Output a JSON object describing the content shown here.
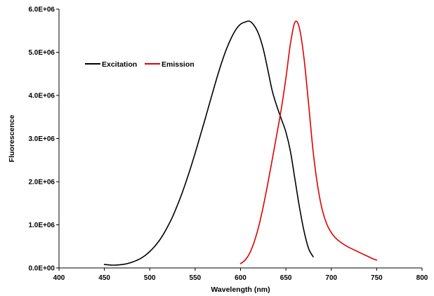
{
  "chart_data": {
    "type": "line",
    "title": "",
    "xlabel": "Wavelength (nm)",
    "ylabel": "Fluorescence",
    "xlim": [
      400,
      800
    ],
    "ylim": [
      0,
      6000000
    ],
    "x_ticks": [
      400,
      450,
      500,
      550,
      600,
      650,
      700,
      750,
      800
    ],
    "x_tick_labels": [
      "400",
      "450",
      "500",
      "550",
      "600",
      "650",
      "700",
      "750",
      "800"
    ],
    "y_ticks": [
      0,
      1000000,
      2000000,
      3000000,
      4000000,
      5000000,
      6000000
    ],
    "y_tick_labels": [
      "0.0E+00",
      "1.0E+06",
      "2.0E+06",
      "3.0E+06",
      "4.0E+06",
      "5.0E+06",
      "6.0E+06"
    ],
    "grid": false,
    "legend": "top-left",
    "series": [
      {
        "name": "Excitation",
        "color": "#000000",
        "x": [
          450,
          455,
          460,
          465,
          470,
          475,
          480,
          485,
          490,
          495,
          500,
          505,
          510,
          515,
          520,
          525,
          530,
          535,
          540,
          545,
          550,
          555,
          560,
          565,
          570,
          575,
          580,
          585,
          590,
          595,
          600,
          605,
          610,
          615,
          620,
          625,
          630,
          635,
          640,
          645,
          650,
          655,
          660,
          665,
          670,
          675,
          680
        ],
        "y": [
          80000,
          70000,
          65000,
          70000,
          80000,
          100000,
          130000,
          170000,
          220000,
          290000,
          380000,
          490000,
          620000,
          780000,
          970000,
          1180000,
          1430000,
          1700000,
          2000000,
          2320000,
          2660000,
          3020000,
          3380000,
          3750000,
          4120000,
          4480000,
          4810000,
          5100000,
          5340000,
          5530000,
          5650000,
          5700000,
          5720000,
          5620000,
          5420000,
          5080000,
          4600000,
          4100000,
          3750000,
          3450000,
          3150000,
          2700000,
          2050000,
          1400000,
          850000,
          450000,
          260000
        ]
      },
      {
        "name": "Emission",
        "color": "#e00000",
        "x": [
          600,
          605,
          610,
          615,
          620,
          625,
          630,
          635,
          640,
          645,
          650,
          655,
          660,
          665,
          670,
          675,
          680,
          685,
          690,
          695,
          700,
          705,
          710,
          715,
          720,
          725,
          730,
          735,
          740,
          745,
          750
        ],
        "y": [
          100000,
          180000,
          340000,
          600000,
          960000,
          1420000,
          1950000,
          2520000,
          3100000,
          3700000,
          4400000,
          5200000,
          5700000,
          5550000,
          4850000,
          3800000,
          2700000,
          1900000,
          1350000,
          1020000,
          820000,
          690000,
          600000,
          530000,
          470000,
          420000,
          370000,
          320000,
          270000,
          220000,
          180000
        ]
      }
    ]
  }
}
